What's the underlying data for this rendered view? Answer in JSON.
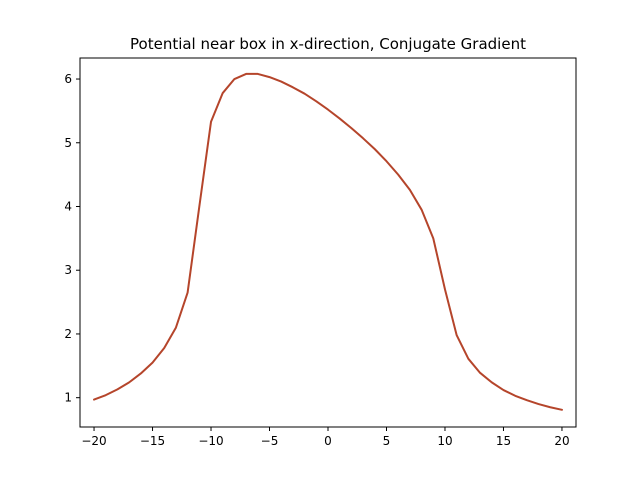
{
  "chart_data": {
    "type": "line",
    "title": "Potential near box in x-direction, Conjugate Gradient",
    "xlabel": "",
    "ylabel": "",
    "xlim": [
      -21.2,
      21.2
    ],
    "ylim": [
      0.54,
      6.33
    ],
    "grid": false,
    "x_ticks": [
      -20,
      -15,
      -10,
      -5,
      0,
      5,
      10,
      15,
      20
    ],
    "x_tick_labels": [
      "−20",
      "−15",
      "−10",
      "−5",
      "0",
      "5",
      "10",
      "15",
      "20"
    ],
    "y_ticks": [
      1,
      2,
      3,
      4,
      5,
      6
    ],
    "y_tick_labels": [
      "1",
      "2",
      "3",
      "4",
      "5",
      "6"
    ],
    "colors": {
      "line": "#b5452b"
    },
    "series": [
      {
        "x": [
          -20,
          -19,
          -18,
          -17,
          -16,
          -15,
          -14,
          -13,
          -12,
          -11,
          -10,
          -9,
          -8,
          -7,
          -6,
          -5,
          -4,
          -3,
          -2,
          -1,
          0,
          1,
          2,
          3,
          4,
          5,
          6,
          7,
          8,
          9,
          10,
          11,
          12,
          13,
          14,
          15,
          16,
          17,
          18,
          19,
          20
        ],
        "values": [
          0.97,
          1.04,
          1.13,
          1.24,
          1.38,
          1.55,
          1.78,
          2.1,
          2.65,
          4.0,
          5.33,
          5.78,
          6.0,
          6.08,
          6.08,
          6.03,
          5.96,
          5.87,
          5.77,
          5.65,
          5.52,
          5.38,
          5.23,
          5.07,
          4.9,
          4.71,
          4.5,
          4.26,
          3.95,
          3.5,
          2.7,
          1.98,
          1.61,
          1.39,
          1.24,
          1.12,
          1.03,
          0.96,
          0.9,
          0.85,
          0.81
        ]
      }
    ]
  }
}
